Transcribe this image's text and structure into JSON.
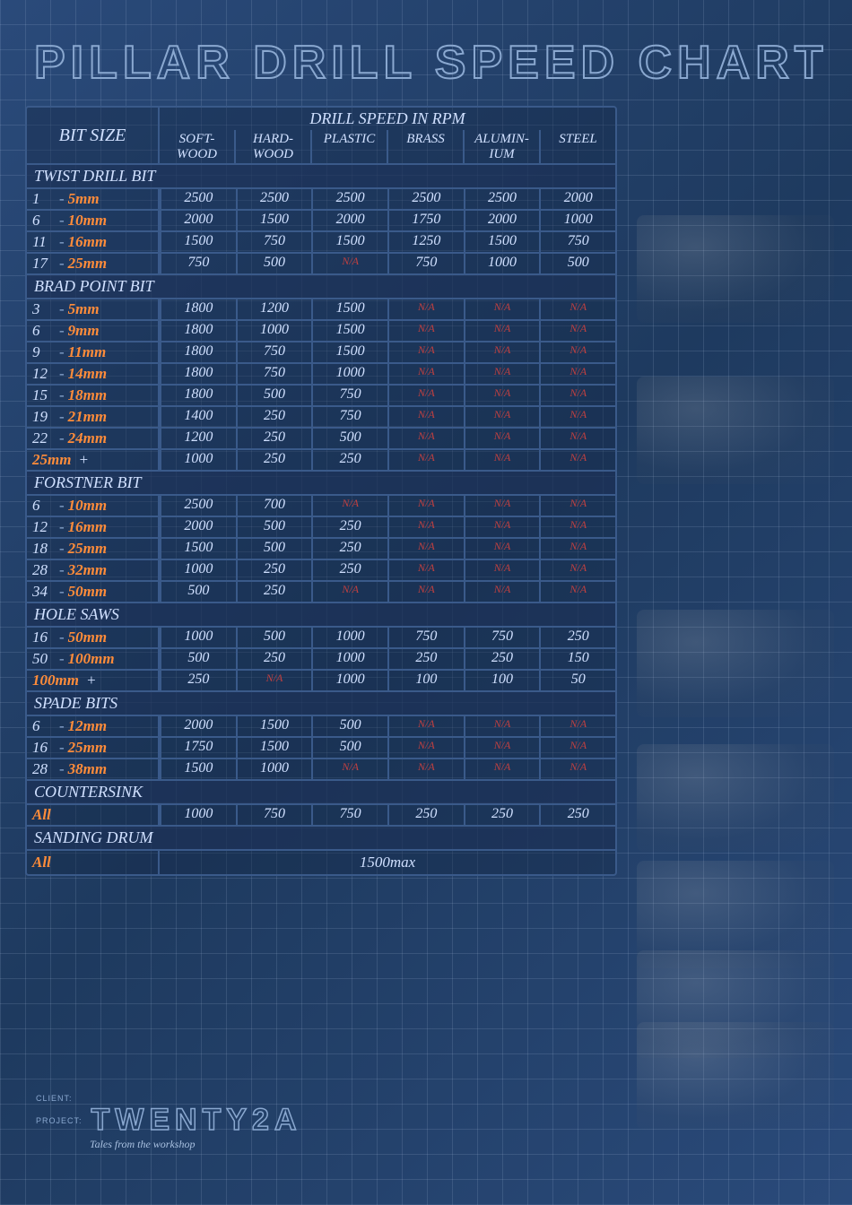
{
  "title": "PILLAR DRILL SPEED CHART",
  "header": {
    "bit_size": "BIT SIZE",
    "speed_title": "DRILL SPEED IN RPM",
    "materials": [
      "SOFT-\nWOOD",
      "HARD-\nWOOD",
      "PLASTIC",
      "BRASS",
      "ALUMIN-\nIUM",
      "STEEL"
    ]
  },
  "colors": {
    "text": "#d0e0ff",
    "accent": "#ff8c3a",
    "na": "#c04040",
    "border": "#3a5a8a"
  },
  "sections": [
    {
      "name": "TWIST DRILL BIT",
      "rows": [
        {
          "range": [
            "1",
            "5mm"
          ],
          "vals": [
            "2500",
            "2500",
            "2500",
            "2500",
            "2500",
            "2000"
          ]
        },
        {
          "range": [
            "6",
            "10mm"
          ],
          "vals": [
            "2000",
            "1500",
            "2000",
            "1750",
            "2000",
            "1000"
          ]
        },
        {
          "range": [
            "11",
            "16mm"
          ],
          "vals": [
            "1500",
            "750",
            "1500",
            "1250",
            "1500",
            "750"
          ]
        },
        {
          "range": [
            "17",
            "25mm"
          ],
          "vals": [
            "750",
            "500",
            "N/A",
            "750",
            "1000",
            "500"
          ]
        }
      ]
    },
    {
      "name": "BRAD POINT BIT",
      "rows": [
        {
          "range": [
            "3",
            "5mm"
          ],
          "vals": [
            "1800",
            "1200",
            "1500",
            "N/A",
            "N/A",
            "N/A"
          ]
        },
        {
          "range": [
            "6",
            "9mm"
          ],
          "vals": [
            "1800",
            "1000",
            "1500",
            "N/A",
            "N/A",
            "N/A"
          ]
        },
        {
          "range": [
            "9",
            "11mm"
          ],
          "vals": [
            "1800",
            "750",
            "1500",
            "N/A",
            "N/A",
            "N/A"
          ]
        },
        {
          "range": [
            "12",
            "14mm"
          ],
          "vals": [
            "1800",
            "750",
            "1000",
            "N/A",
            "N/A",
            "N/A"
          ]
        },
        {
          "range": [
            "15",
            "18mm"
          ],
          "vals": [
            "1800",
            "500",
            "750",
            "N/A",
            "N/A",
            "N/A"
          ]
        },
        {
          "range": [
            "19",
            "21mm"
          ],
          "vals": [
            "1400",
            "250",
            "750",
            "N/A",
            "N/A",
            "N/A"
          ]
        },
        {
          "range": [
            "22",
            "24mm"
          ],
          "vals": [
            "1200",
            "250",
            "500",
            "N/A",
            "N/A",
            "N/A"
          ]
        },
        {
          "range": [
            "25mm",
            "+"
          ],
          "vals": [
            "1000",
            "250",
            "250",
            "N/A",
            "N/A",
            "N/A"
          ],
          "accentFirst": true
        }
      ]
    },
    {
      "name": "FORSTNER BIT",
      "rows": [
        {
          "range": [
            "6",
            "10mm"
          ],
          "vals": [
            "2500",
            "700",
            "N/A",
            "N/A",
            "N/A",
            "N/A"
          ]
        },
        {
          "range": [
            "12",
            "16mm"
          ],
          "vals": [
            "2000",
            "500",
            "250",
            "N/A",
            "N/A",
            "N/A"
          ]
        },
        {
          "range": [
            "18",
            "25mm"
          ],
          "vals": [
            "1500",
            "500",
            "250",
            "N/A",
            "N/A",
            "N/A"
          ]
        },
        {
          "range": [
            "28",
            "32mm"
          ],
          "vals": [
            "1000",
            "250",
            "250",
            "N/A",
            "N/A",
            "N/A"
          ]
        },
        {
          "range": [
            "34",
            "50mm"
          ],
          "vals": [
            "500",
            "250",
            "N/A",
            "N/A",
            "N/A",
            "N/A"
          ]
        }
      ]
    },
    {
      "name": "HOLE SAWS",
      "rows": [
        {
          "range": [
            "16",
            "50mm"
          ],
          "vals": [
            "1000",
            "500",
            "1000",
            "750",
            "750",
            "250"
          ]
        },
        {
          "range": [
            "50",
            "100mm"
          ],
          "vals": [
            "500",
            "250",
            "1000",
            "250",
            "250",
            "150"
          ]
        },
        {
          "range": [
            "100mm",
            "+"
          ],
          "vals": [
            "250",
            "N/A",
            "1000",
            "100",
            "100",
            "50"
          ],
          "accentFirst": true
        }
      ]
    },
    {
      "name": "SPADE BITS",
      "rows": [
        {
          "range": [
            "6",
            "12mm"
          ],
          "vals": [
            "2000",
            "1500",
            "500",
            "N/A",
            "N/A",
            "N/A"
          ]
        },
        {
          "range": [
            "16",
            "25mm"
          ],
          "vals": [
            "1750",
            "1500",
            "500",
            "N/A",
            "N/A",
            "N/A"
          ]
        },
        {
          "range": [
            "28",
            "38mm"
          ],
          "vals": [
            "1500",
            "1000",
            "N/A",
            "N/A",
            "N/A",
            "N/A"
          ]
        }
      ]
    },
    {
      "name": "COUNTERSINK",
      "rows": [
        {
          "range": [
            "All",
            ""
          ],
          "vals": [
            "1000",
            "750",
            "750",
            "250",
            "250",
            "250"
          ],
          "single": true
        }
      ]
    },
    {
      "name": "SANDING DRUM",
      "rows": [
        {
          "range": [
            "All",
            ""
          ],
          "full": "1500max",
          "single": true
        }
      ]
    }
  ],
  "footer": {
    "client_label": "CLIENT:",
    "project_label": "PROJECT:",
    "brand": "TWENTY2A",
    "subtitle": "Tales from the workshop"
  },
  "side_labels": [
    "twist-bit",
    "brad-point-bit",
    "forstner-bit",
    "hole-saw",
    "spade-bit",
    "countersink",
    "sanding-drum"
  ]
}
